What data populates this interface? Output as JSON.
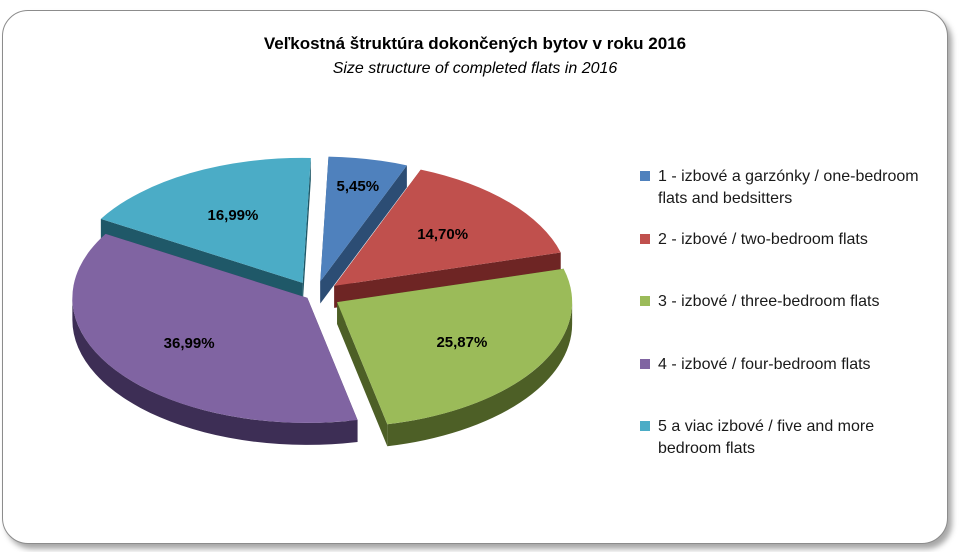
{
  "chart_data": {
    "type": "pie",
    "title": "Veľkostná štruktúra dokončených bytov v roku 2016",
    "subtitle": "Size structure of completed flats in 2016",
    "legend_position": "right",
    "slices": [
      {
        "label": "1 - izbové a garzónky / one-bedroom flats and bedsitters",
        "value": 5.45,
        "display": "5,45%",
        "color": "#4f81bd",
        "side": "#2c4d74"
      },
      {
        "label": "2 - izbové / two-bedroom flats",
        "value": 14.7,
        "display": "14,70%",
        "color": "#c0504d",
        "side": "#6e2524"
      },
      {
        "label": "3 - izbové / three-bedroom flats",
        "value": 25.87,
        "display": "25,87%",
        "color": "#9bbb59",
        "side": "#4d5f26"
      },
      {
        "label": "4 - izbové / four-bedroom flats",
        "value": 36.99,
        "display": "36,99%",
        "color": "#8064a2",
        "side": "#3d2e55"
      },
      {
        "label": "5 a viac izbové / five and more bedroom flats",
        "value": 16.99,
        "display": "16,99%",
        "color": "#4bacc6",
        "side": "#1f5868"
      }
    ]
  }
}
